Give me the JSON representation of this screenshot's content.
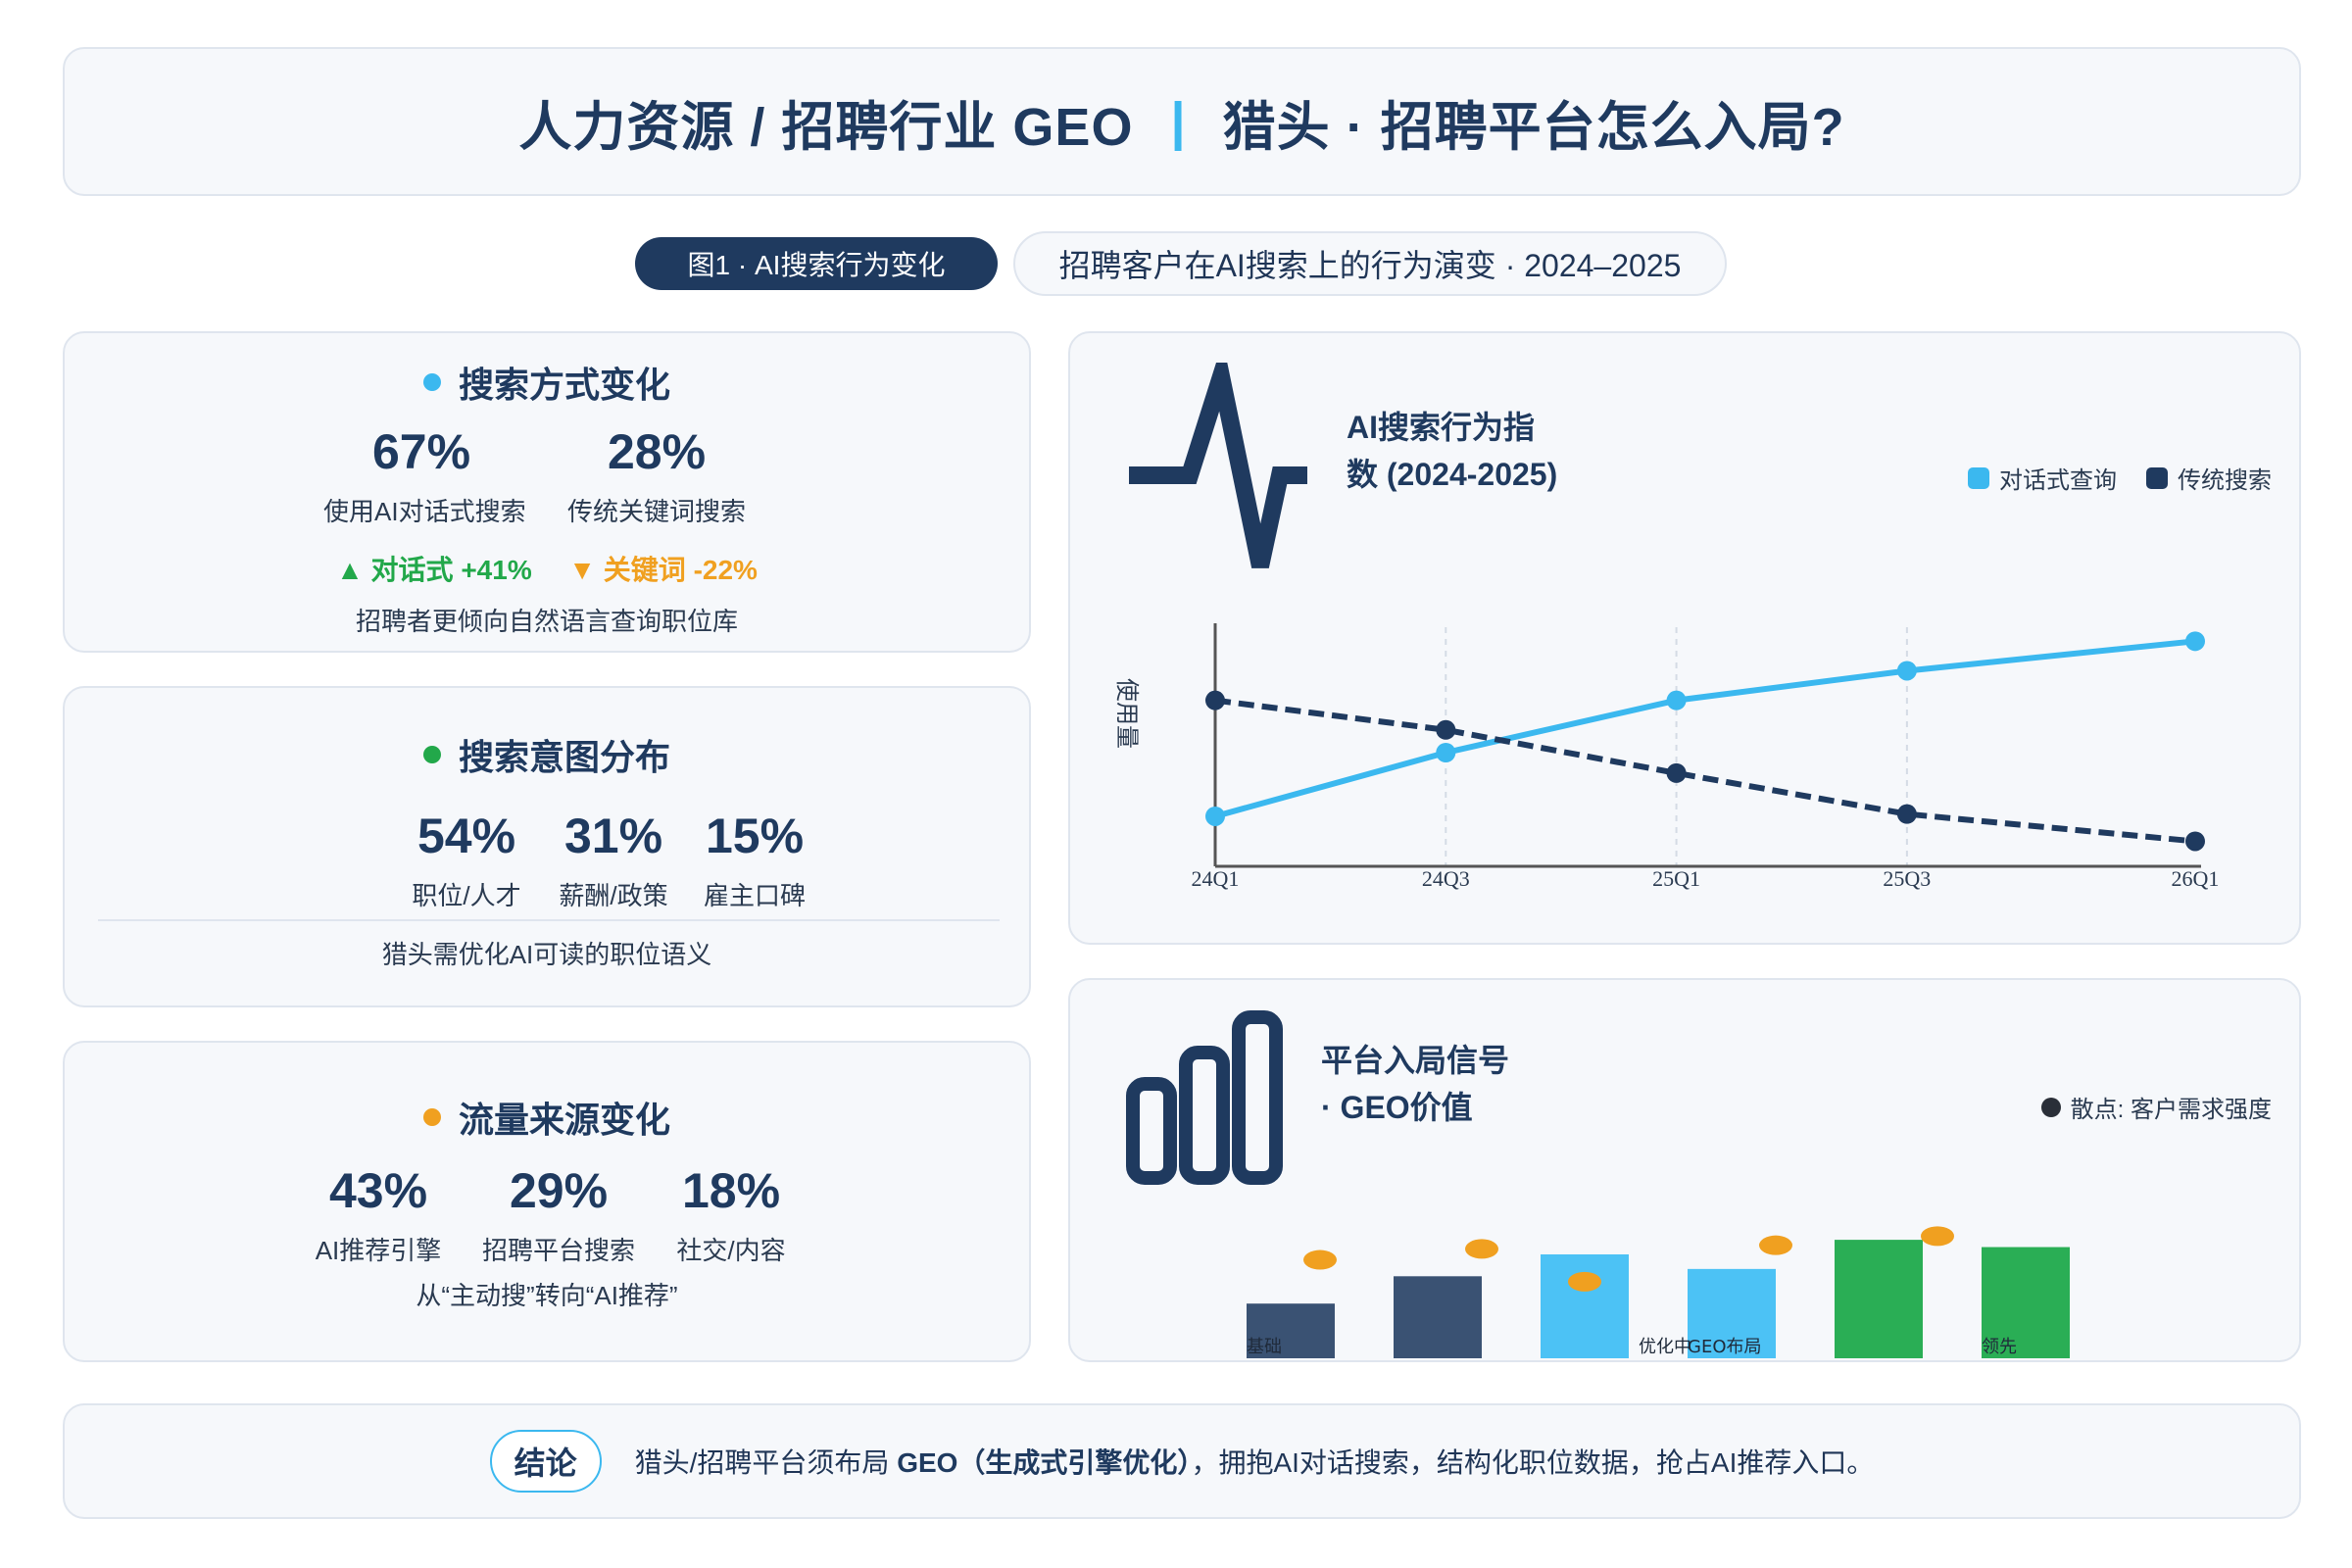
{
  "header": {
    "title_left": "人力资源 / 招聘行业 GEO",
    "separator": "|",
    "title_right": "猎头 · 招聘平台怎么入局?"
  },
  "figure_pill": "图1 · AI搜索行为变化",
  "subtitle_pill": "招聘客户在AI搜索上的行为演变 · 2024–2025",
  "search_mode": {
    "title": "搜索方式变化",
    "dot_color": "#3bb8ef",
    "stats": [
      {
        "value": "67%",
        "label": "使用AI对话式搜索"
      },
      {
        "value": "28%",
        "label": "传统关键词搜索"
      }
    ],
    "up": "▲ 对话式 +41%",
    "down": "▼ 关键词 -22%",
    "note": "招聘者更倾向自然语言查询职位库"
  },
  "intent": {
    "title": "搜索意图分布",
    "dot_color": "#22a84a",
    "stats": [
      {
        "value": "54%",
        "label": "职位/人才"
      },
      {
        "value": "31%",
        "label": "薪酬/政策"
      },
      {
        "value": "15%",
        "label": "雇主口碑"
      }
    ],
    "note": "猎头需优化AI可读的职位语义"
  },
  "traffic": {
    "title": "流量来源变化",
    "dot_color": "#f0a020",
    "stats": [
      {
        "value": "43%",
        "label": "AI推荐引擎"
      },
      {
        "value": "29%",
        "label": "招聘平台搜索"
      },
      {
        "value": "18%",
        "label": "社交/内容"
      }
    ],
    "note": "从“主动搜”转向“AI推荐”"
  },
  "colors": {
    "navy": "#1f3a5f",
    "sky": "#3bb8ef",
    "green": "#22a84a",
    "orange": "#f0a020",
    "slate": "#3a5273"
  },
  "chart_data": [
    {
      "type": "line",
      "title": "AI搜索行为指数 (2024-2025)",
      "icon": "pulse-icon",
      "ylabel": "使用量",
      "x": [
        "24Q1",
        "24Q3",
        "25Q1",
        "25Q3",
        "26Q1"
      ],
      "x_positions": [
        0,
        1,
        2,
        3,
        4.25
      ],
      "ylim": [
        0,
        100
      ],
      "series": [
        {
          "name": "对话式查询",
          "color": "#3bb8ef",
          "style": "solid",
          "values": [
            22,
            50,
            73,
            86,
            99
          ]
        },
        {
          "name": "传统搜索",
          "color": "#1f3a5f",
          "style": "dashed",
          "values": [
            73,
            60,
            41,
            23,
            11
          ]
        }
      ],
      "legend": "top-right",
      "grid": "vertical dashed"
    },
    {
      "type": "bar",
      "title": "平台入局信号 · GEO价值",
      "icon": "bar-chart-icon",
      "legend_label": "散点: 客户需求强度",
      "legend": "top-right",
      "ylim": [
        0,
        100
      ],
      "bar_values": [
        30,
        45,
        57,
        49,
        65,
        61
      ],
      "bar_colors": [
        "#3a5273",
        "#3a5273",
        "#4cc2f5",
        "#4cc2f5",
        "#2aae55",
        "#2aae55"
      ],
      "bar_labels": [
        "基础",
        "",
        "优化中",
        "GEO布局",
        "",
        "领先"
      ],
      "scatter": {
        "color": "#f0a020",
        "points": [
          {
            "x": 0.2,
            "y": 54
          },
          {
            "x": 1.3,
            "y": 60
          },
          {
            "x": 2.0,
            "y": 42
          },
          {
            "x": 3.3,
            "y": 62
          },
          {
            "x": 4.4,
            "y": 67
          }
        ]
      }
    }
  ],
  "conclusion": {
    "badge": "结论",
    "text_a": "猎头/招聘平台须布局 ",
    "text_b": "GEO（生成式引擎优化）",
    "text_c": "，拥抱AI对话搜索，结构化职位数据，抢占AI推荐入口。"
  }
}
